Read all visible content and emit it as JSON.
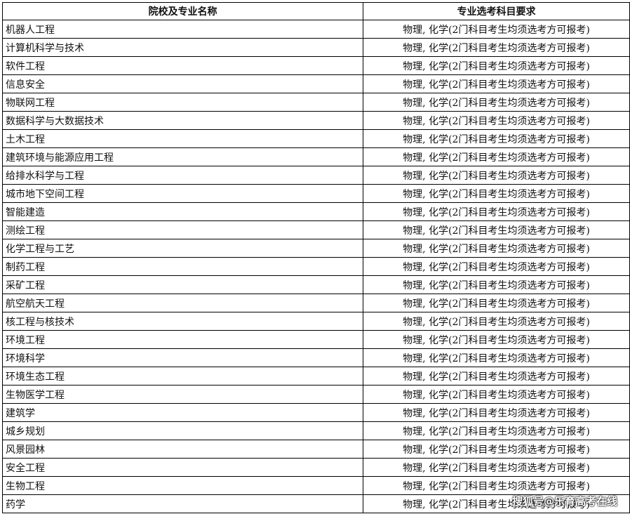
{
  "table": {
    "header": [
      "院校及专业名称",
      "专业选考科目要求"
    ],
    "rows": [
      [
        "机器人工程",
        "物理, 化学(2门科目考生均须选考方可报考)"
      ],
      [
        "计算机科学与技术",
        "物理, 化学(2门科目考生均须选考方可报考)"
      ],
      [
        "软件工程",
        "物理, 化学(2门科目考生均须选考方可报考)"
      ],
      [
        "信息安全",
        "物理, 化学(2门科目考生均须选考方可报考)"
      ],
      [
        "物联网工程",
        "物理, 化学(2门科目考生均须选考方可报考)"
      ],
      [
        "数据科学与大数据技术",
        "物理, 化学(2门科目考生均须选考方可报考)"
      ],
      [
        "土木工程",
        "物理, 化学(2门科目考生均须选考方可报考)"
      ],
      [
        "建筑环境与能源应用工程",
        "物理, 化学(2门科目考生均须选考方可报考)"
      ],
      [
        "给排水科学与工程",
        "物理, 化学(2门科目考生均须选考方可报考)"
      ],
      [
        "城市地下空间工程",
        "物理, 化学(2门科目考生均须选考方可报考)"
      ],
      [
        "智能建造",
        "物理, 化学(2门科目考生均须选考方可报考)"
      ],
      [
        "测绘工程",
        "物理, 化学(2门科目考生均须选考方可报考)"
      ],
      [
        "化学工程与工艺",
        "物理, 化学(2门科目考生均须选考方可报考)"
      ],
      [
        "制药工程",
        "物理, 化学(2门科目考生均须选考方可报考)"
      ],
      [
        "采矿工程",
        "物理, 化学(2门科目考生均须选考方可报考)"
      ],
      [
        "航空航天工程",
        "物理, 化学(2门科目考生均须选考方可报考)"
      ],
      [
        "核工程与核技术",
        "物理, 化学(2门科目考生均须选考方可报考)"
      ],
      [
        "环境工程",
        "物理, 化学(2门科目考生均须选考方可报考)"
      ],
      [
        "环境科学",
        "物理, 化学(2门科目考生均须选考方可报考)"
      ],
      [
        "环境生态工程",
        "物理, 化学(2门科目考生均须选考方可报考)"
      ],
      [
        "生物医学工程",
        "物理, 化学(2门科目考生均须选考方可报考)"
      ],
      [
        "建筑学",
        "物理, 化学(2门科目考生均须选考方可报考)"
      ],
      [
        "城乡规划",
        "物理, 化学(2门科目考生均须选考方可报考)"
      ],
      [
        "风景园林",
        "物理, 化学(2门科目考生均须选考方可报考)"
      ],
      [
        "安全工程",
        "物理, 化学(2门科目考生均须选考方可报考)"
      ],
      [
        "生物工程",
        "物理, 化学(2门科目考生均须选考方可报考)"
      ],
      [
        "药学",
        "物理, 化学(2门科目考生均须选考方可报考)"
      ]
    ]
  },
  "watermark": "搜狐号@乐育高考在线"
}
